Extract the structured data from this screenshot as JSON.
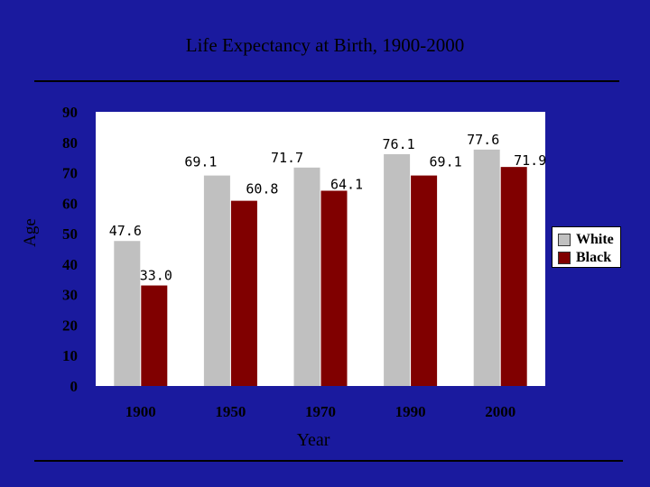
{
  "chart_data": {
    "type": "bar",
    "title": "Life Expectancy at Birth, 1900-2000",
    "xlabel": "Year",
    "ylabel": "Age",
    "categories": [
      "1900",
      "1950",
      "1970",
      "1990",
      "2000"
    ],
    "series": [
      {
        "name": "White",
        "values": [
          47.6,
          69.1,
          71.7,
          76.1,
          77.6
        ],
        "labels": [
          "47.6",
          "69.1",
          "71.7",
          "76.1",
          "77.6"
        ],
        "color": "#c0c0c0"
      },
      {
        "name": "Black",
        "values": [
          33.0,
          60.8,
          64.1,
          69.1,
          71.9
        ],
        "labels": [
          "33.0",
          "60.8",
          "64.1",
          "69.1",
          "71.9"
        ],
        "color": "#800000"
      }
    ],
    "ylim": [
      0,
      90
    ],
    "yticks": [
      "0",
      "10",
      "20",
      "30",
      "40",
      "50",
      "60",
      "70",
      "80",
      "90"
    ],
    "grid": false,
    "legend": "right",
    "plot_background": "#ffffff",
    "page_background": "#1a1a9e"
  }
}
